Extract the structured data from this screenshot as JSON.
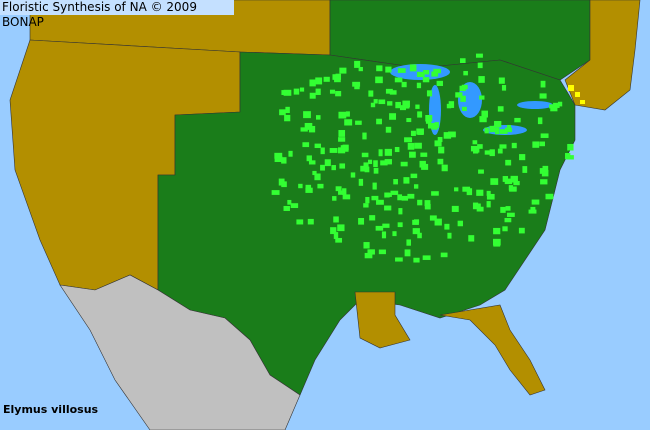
{
  "header": {
    "title": "Floristic Synthesis of NA © 2009 BONAP"
  },
  "map": {
    "species": "Elymus villosus",
    "colors": {
      "ocean": "#99ccff",
      "lakes": "#3399ff",
      "state_present": "#1a7d1a",
      "county_present": "#33ff33",
      "county_rare": "#ffff00",
      "absent": "#b38f00",
      "outside_range": "#c0c0c0",
      "borders": "#333333"
    }
  }
}
